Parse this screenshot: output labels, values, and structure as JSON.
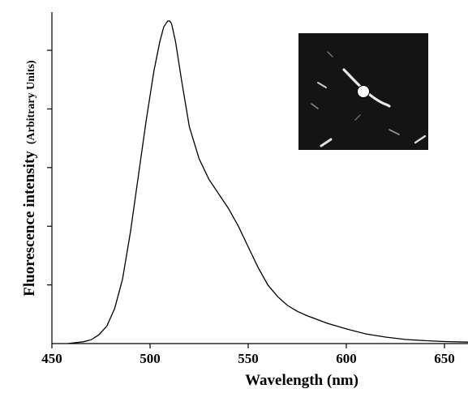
{
  "chart_data": {
    "type": "line",
    "xlabel": "Wavelength (nm)",
    "ylabel": "Fluorescence intensity",
    "ylabel_unit": "(Arbitrary Units)",
    "xlim": [
      450,
      662
    ],
    "ylim": [
      0,
      1.13
    ],
    "x_ticks": [
      450,
      500,
      550,
      600,
      650
    ],
    "x_tick_labels": [
      "450",
      "500",
      "550",
      "600",
      "650"
    ],
    "y_ticks": [
      0.2,
      0.4,
      0.6,
      0.8,
      1.0
    ],
    "grid": false,
    "series": [
      {
        "x": [
          458,
          462,
          466,
          470,
          474,
          478,
          482,
          486,
          490,
          494,
          498,
          502,
          505,
          507,
          509,
          510,
          511,
          513,
          516,
          520,
          525,
          530,
          535,
          540,
          545,
          550,
          555,
          560,
          565,
          570,
          575,
          580,
          590,
          600,
          610,
          620,
          630,
          640,
          650,
          662
        ],
        "y": [
          0.0,
          0.003,
          0.006,
          0.013,
          0.03,
          0.06,
          0.12,
          0.22,
          0.38,
          0.57,
          0.76,
          0.93,
          1.03,
          1.08,
          1.1,
          1.1,
          1.09,
          1.03,
          0.9,
          0.74,
          0.63,
          0.56,
          0.51,
          0.46,
          0.4,
          0.33,
          0.26,
          0.2,
          0.16,
          0.13,
          0.11,
          0.095,
          0.07,
          0.05,
          0.033,
          0.022,
          0.014,
          0.01,
          0.007,
          0.005
        ]
      }
    ]
  },
  "inset": {
    "type": "fluorescence-micrograph",
    "background": "#141414",
    "marker_color": "#ffffff"
  }
}
